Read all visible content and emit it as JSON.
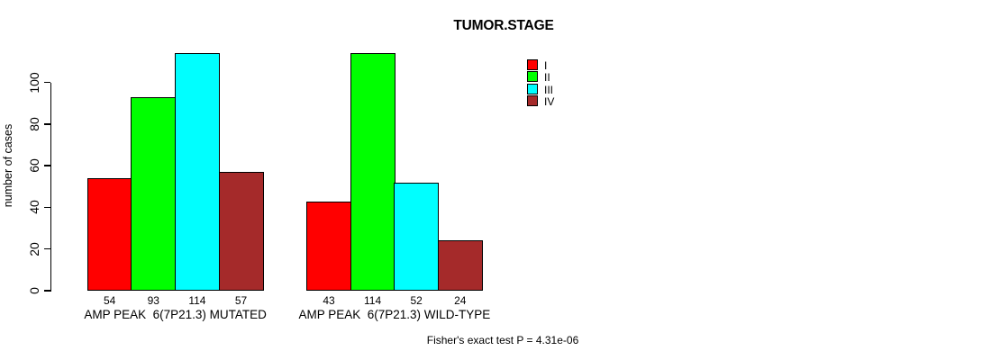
{
  "chart_data": {
    "type": "bar",
    "title": "TUMOR.STAGE",
    "ylabel": "number of cases",
    "xlabel": "",
    "ylim": [
      0,
      116
    ],
    "yticks": [
      0,
      20,
      40,
      60,
      80,
      100
    ],
    "grid": false,
    "legend_position": "top-right",
    "categories": [
      "AMP PEAK  6(7P21.3) MUTATED",
      "AMP PEAK  6(7P21.3) WILD-TYPE"
    ],
    "series": [
      {
        "name": "I",
        "color": "#ff0000",
        "values": [
          54,
          43
        ]
      },
      {
        "name": "II",
        "color": "#00ff00",
        "values": [
          93,
          114
        ]
      },
      {
        "name": "III",
        "color": "#00ffff",
        "values": [
          114,
          52
        ]
      },
      {
        "name": "IV",
        "color": "#a52a2a",
        "values": [
          57,
          24
        ]
      }
    ],
    "bar_value_labels_shown": true,
    "footnote": "Fisher's exact test P = 4.31e-06"
  }
}
